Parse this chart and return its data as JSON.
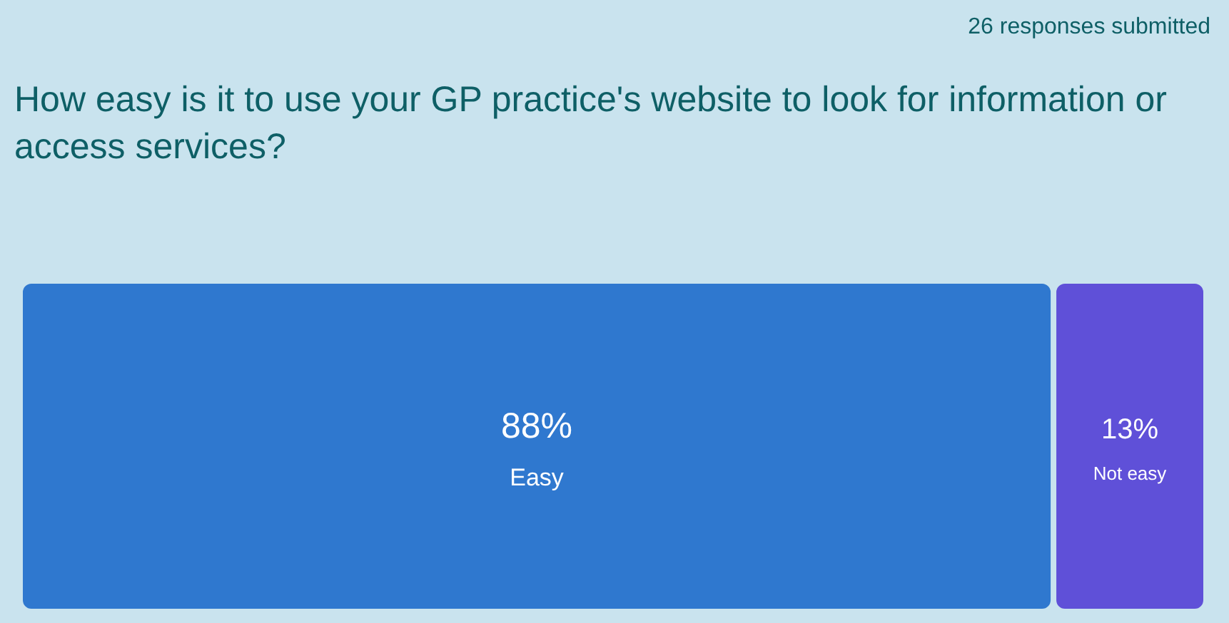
{
  "chart_data": {
    "type": "bar",
    "title": "How easy is it to use your GP practice's website to look for information or access services?",
    "annotations": [
      "26 responses submitted"
    ],
    "categories": [
      null
    ],
    "orientation": "horizontal",
    "stacked": true,
    "series": [
      {
        "name": "Easy",
        "color": "#2f78cf",
        "values": [
          88
        ],
        "value_labels": [
          "88%"
        ]
      },
      {
        "name": "Not easy",
        "color": "#5f50d8",
        "values": [
          13
        ],
        "value_labels": [
          "13%"
        ]
      }
    ]
  }
}
